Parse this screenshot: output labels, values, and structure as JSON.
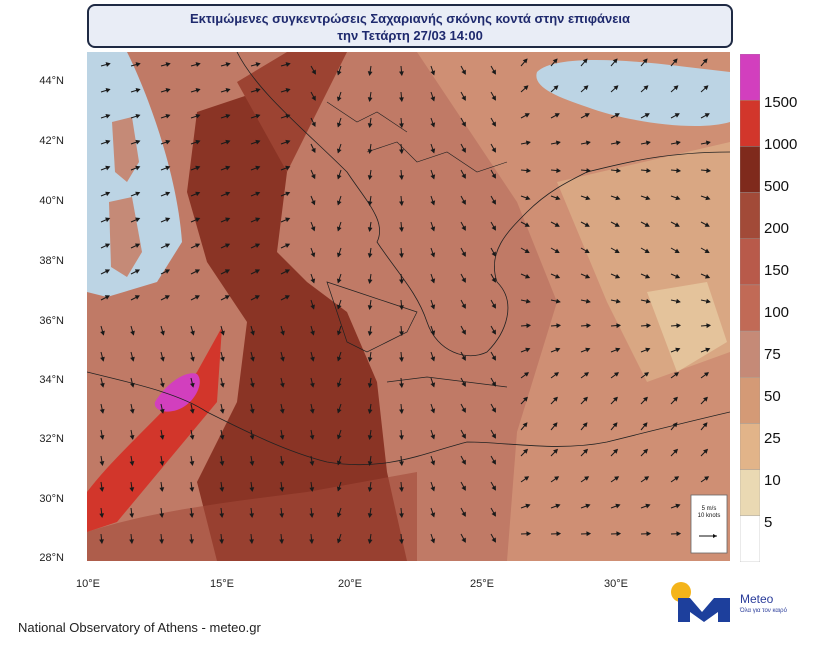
{
  "title": {
    "line1": "Εκτιμώμενες συγκεντρώσεις Σαχαριανής σκόνης κοντά στην επιφάνεια",
    "line2": "την Τετάρτη 27/03 14:00"
  },
  "axes": {
    "lat_labels": [
      "44°N",
      "42°N",
      "40°N",
      "38°N",
      "36°N",
      "34°N",
      "32°N",
      "30°N",
      "28°N"
    ],
    "lon_labels": [
      "10°E",
      "15°E",
      "20°E",
      "25°E",
      "30°E"
    ]
  },
  "legend": {
    "levels": [
      "1500",
      "1000",
      "500",
      "200",
      "150",
      "100",
      "75",
      "50",
      "25",
      "10",
      "5"
    ],
    "colors": [
      "#d23fbe",
      "#d2362b",
      "#7f2a1c",
      "#a24a38",
      "#b85a4a",
      "#c16a56",
      "#c58a77",
      "#d49a76",
      "#e2b489",
      "#ead9b3",
      "#ffffff"
    ]
  },
  "wind_reference": {
    "speed": "5 m/s",
    "knots": "10 knots"
  },
  "footer": "National Observatory of Athens - meteo.gr",
  "logo": {
    "brand": "Meteo",
    "slogan": "Όλα για τον καιρό"
  }
}
